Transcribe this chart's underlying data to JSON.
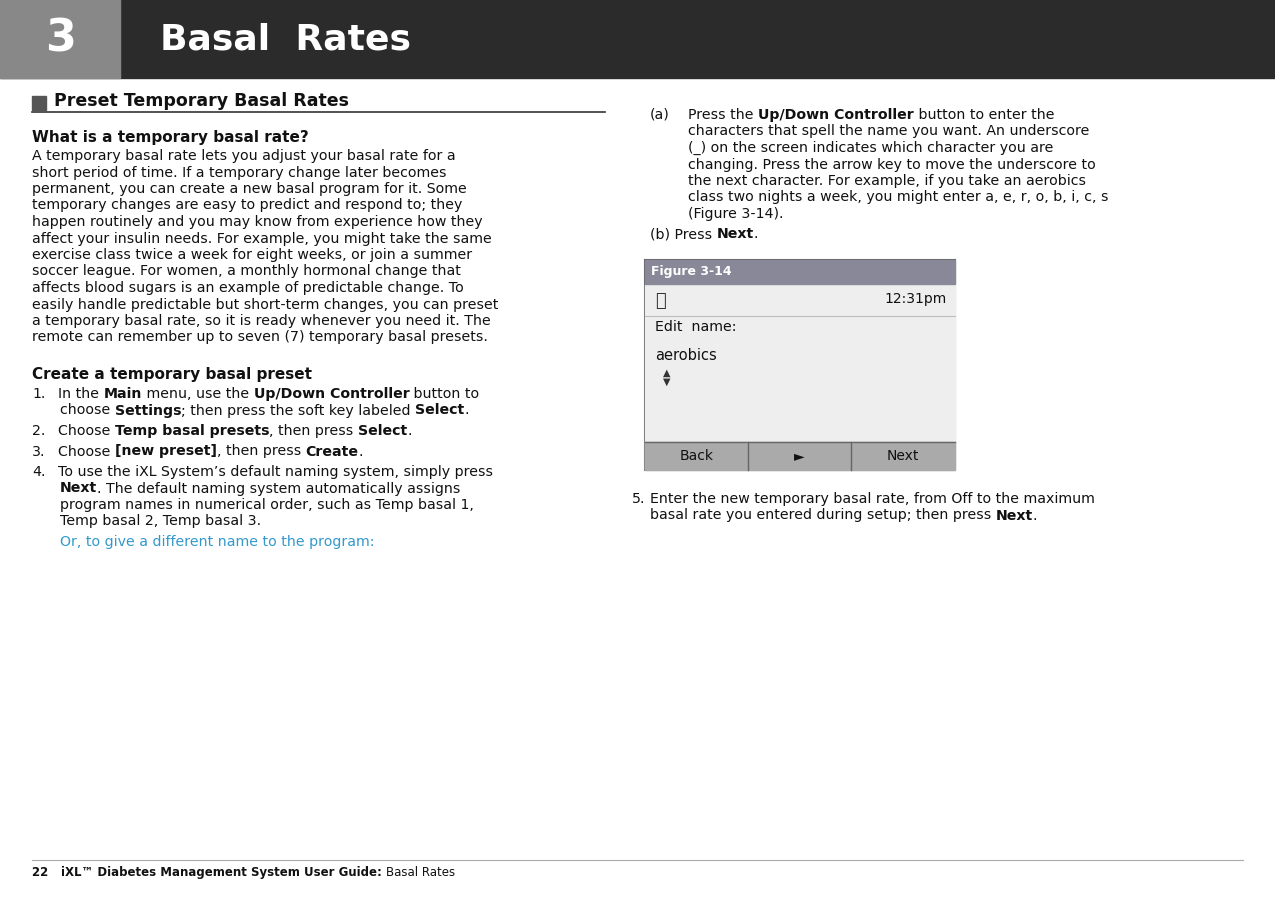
{
  "page_bg": "#ffffff",
  "header_bg": "#2b2b2b",
  "header_num_bg": "#888888",
  "header_num": "3",
  "header_title": "Basal  Rates",
  "section_title": "  Preset Temporary Basal Rates",
  "subsection1_title": "What is a temporary basal rate?",
  "subsection1_body_lines": [
    "A temporary basal rate lets you adjust your basal rate for a",
    "short period of time. If a temporary change later becomes",
    "permanent, you can create a new basal program for it. Some",
    "temporary changes are easy to predict and respond to; they",
    "happen routinely and you may know from experience how they",
    "affect your insulin needs. For example, you might take the same",
    "exercise class twice a week for eight weeks, or join a summer",
    "soccer league. For women, a monthly hormonal change that",
    "affects blood sugars is an example of predictable change. To",
    "easily handle predictable but short-term changes, you can preset",
    "a temporary basal rate, so it is ready whenever you need it. The",
    "remote can remember up to seven (7) temporary basal presets."
  ],
  "subsection2_title": "Create a temporary basal preset",
  "step1_line1": [
    [
      "In the ",
      false
    ],
    [
      "Main",
      true
    ],
    [
      " menu, use the ",
      false
    ],
    [
      "Up/Down Controller",
      true
    ],
    [
      " button to",
      false
    ]
  ],
  "step1_line2": [
    [
      "choose ",
      false
    ],
    [
      "Settings",
      true
    ],
    [
      "; then press the soft key labeled ",
      false
    ],
    [
      "Select",
      true
    ],
    [
      ".",
      false
    ]
  ],
  "step2": [
    [
      "Choose ",
      false
    ],
    [
      "Temp basal presets",
      true
    ],
    [
      ", then press ",
      false
    ],
    [
      "Select",
      true
    ],
    [
      ".",
      false
    ]
  ],
  "step3": [
    [
      "Choose ",
      false
    ],
    [
      "[new preset]",
      true
    ],
    [
      ", then press ",
      false
    ],
    [
      "Create",
      true
    ],
    [
      ".",
      false
    ]
  ],
  "step4_line1": [
    [
      "To use the iXL System’s default naming system, simply press",
      false
    ]
  ],
  "step4_line2": [
    [
      "Next",
      true
    ],
    [
      ". The default naming system automatically assigns",
      false
    ]
  ],
  "step4_line3": "program names in numerical order, such as Temp basal 1,",
  "step4_line4": "Temp basal 2, Temp basal 3.",
  "step4_cyan": "Or, to give a different name to the program:",
  "right_a_line1": [
    [
      "(a)",
      false
    ],
    [
      "Press the ",
      false
    ],
    [
      "Up/Down Controller",
      true
    ],
    [
      " button to enter the",
      false
    ]
  ],
  "right_a_lines": [
    "    characters that spell the name you want. An underscore",
    "    (_) on the screen indicates which character you are",
    "    changing. Press the arrow key to move the underscore to",
    "    the next character. For example, if you take an aerobics",
    "    class two nights a week, you might enter a, e, r, o, b, i, c, s",
    "    (Figure 3-14)."
  ],
  "right_b_line": [
    [
      "(b) Press ",
      false
    ],
    [
      "Next",
      true
    ],
    [
      ".",
      false
    ]
  ],
  "step5_line1": "Enter the new temporary basal rate, from Off to the maximum",
  "step5_line2": [
    [
      "basal rate you entered during setup; then press ",
      false
    ],
    [
      "Next",
      true
    ],
    [
      ".",
      false
    ]
  ],
  "footer_text": "22   iXL™ Diabetes Management System User Guide: Basal Rates",
  "figure_label": "Figure 3-14",
  "figure_time": "12:31pm",
  "figure_edit_name": "Edit  name:",
  "figure_aerobics": "aerobics",
  "figure_back": "Back",
  "figure_next_btn": "Next",
  "cyan_color": "#3399cc",
  "figure_header_bg": "#888899",
  "figure_btn_bg": "#aaaaaa"
}
